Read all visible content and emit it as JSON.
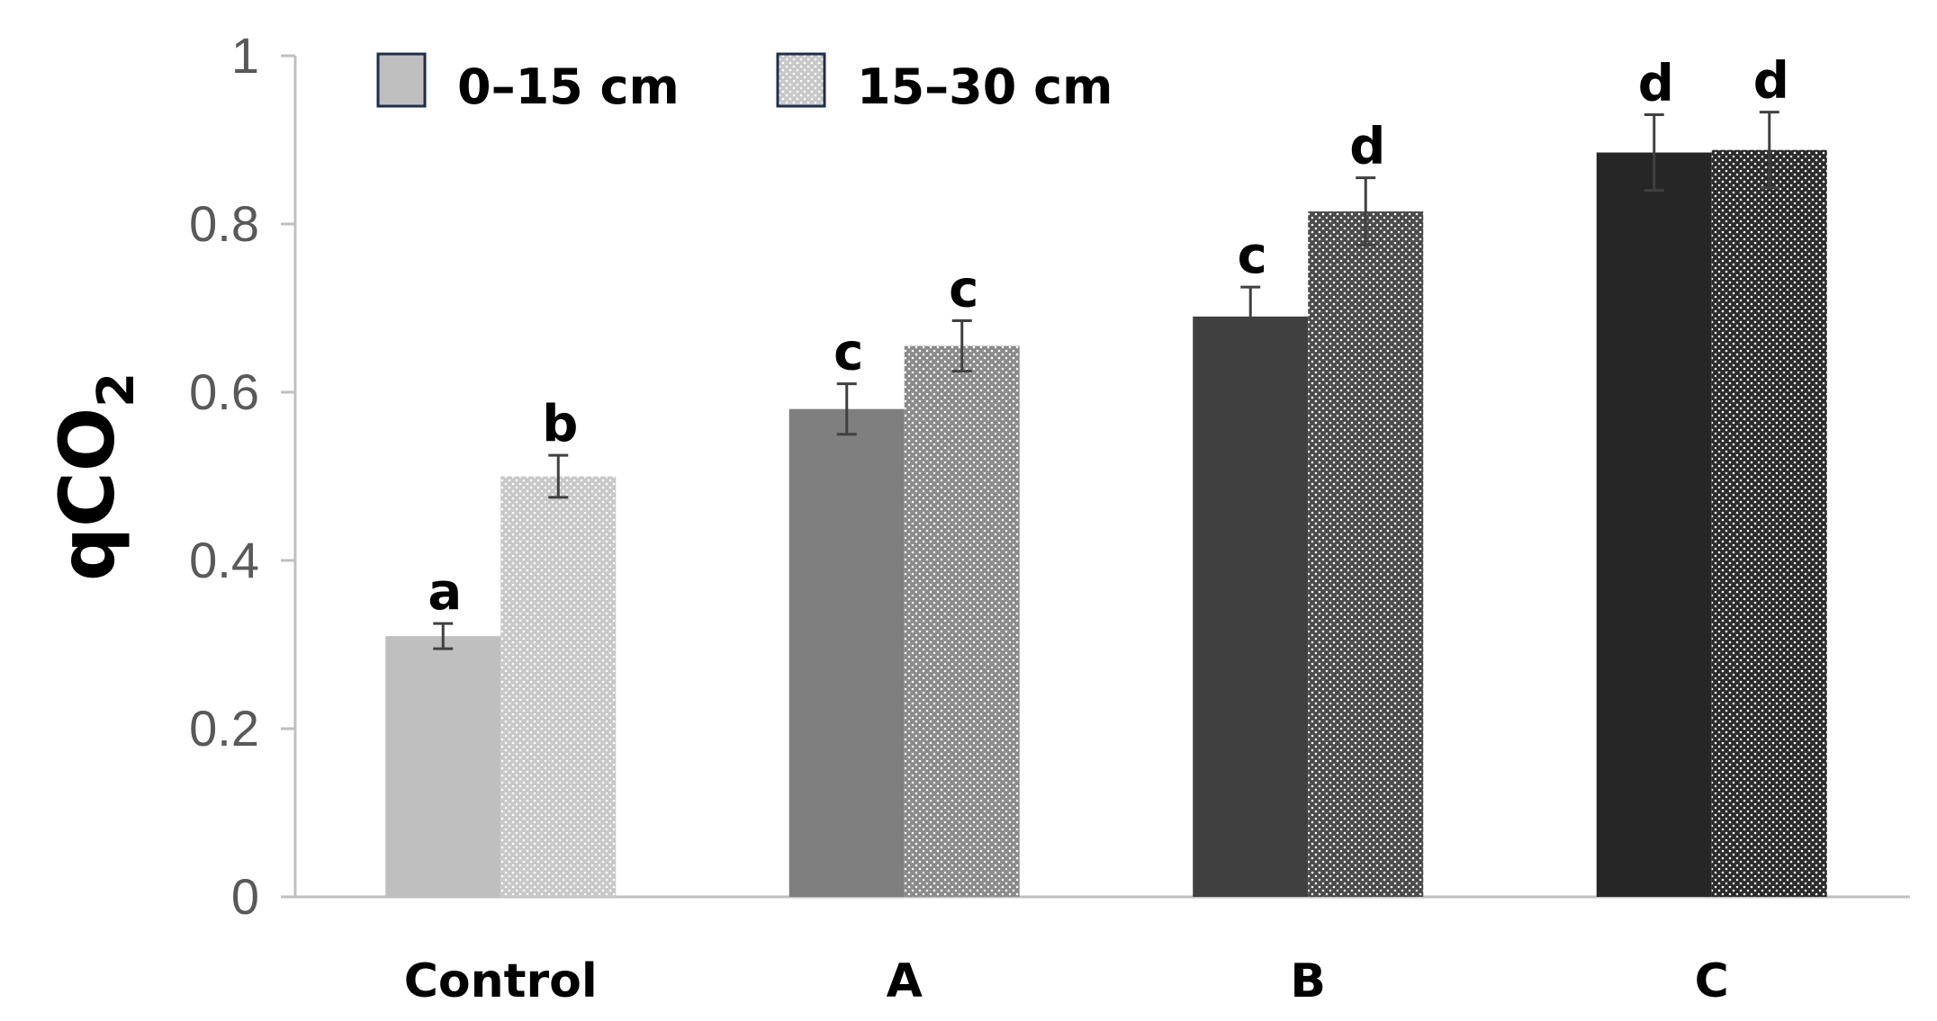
{
  "chart_data": {
    "type": "bar",
    "title": "",
    "xlabel": "",
    "ylabel": "qCO",
    "ylabel_subscript": "2",
    "ylim": [
      0,
      1
    ],
    "yticks": [
      0,
      0.2,
      0.4,
      0.6,
      0.8,
      1
    ],
    "ytick_labels": [
      "0",
      "0.2",
      "0.4",
      "0.6",
      "0.8",
      "1"
    ],
    "grid": false,
    "legend_position": "top-left",
    "categories": [
      "Control",
      "A",
      "B",
      "C"
    ],
    "series": [
      {
        "name": "0–15 cm",
        "pattern": "solid",
        "colors": [
          "#bfbfbf",
          "#7f7f7f",
          "#404040",
          "#262626"
        ],
        "values": [
          0.31,
          0.58,
          0.69,
          0.885
        ],
        "errors": [
          0.015,
          0.03,
          0.035,
          0.045
        ],
        "sig_labels": [
          "a",
          "c",
          "c",
          "d"
        ]
      },
      {
        "name": "15–30 cm",
        "pattern": "dotted",
        "colors": [
          "#c8c8c8",
          "#8a8a8a",
          "#4a4a4a",
          "#2b2b2b"
        ],
        "values": [
          0.5,
          0.655,
          0.815,
          0.888
        ],
        "errors": [
          0.025,
          0.03,
          0.04,
          0.045
        ],
        "sig_labels": [
          "b",
          "c",
          "d",
          "d"
        ]
      }
    ],
    "legend_swatch_colors": [
      "#bfbfbf",
      "#c8c8c8"
    ],
    "axis_color": "#bfbfbf",
    "error_bar_color": "#404040"
  }
}
